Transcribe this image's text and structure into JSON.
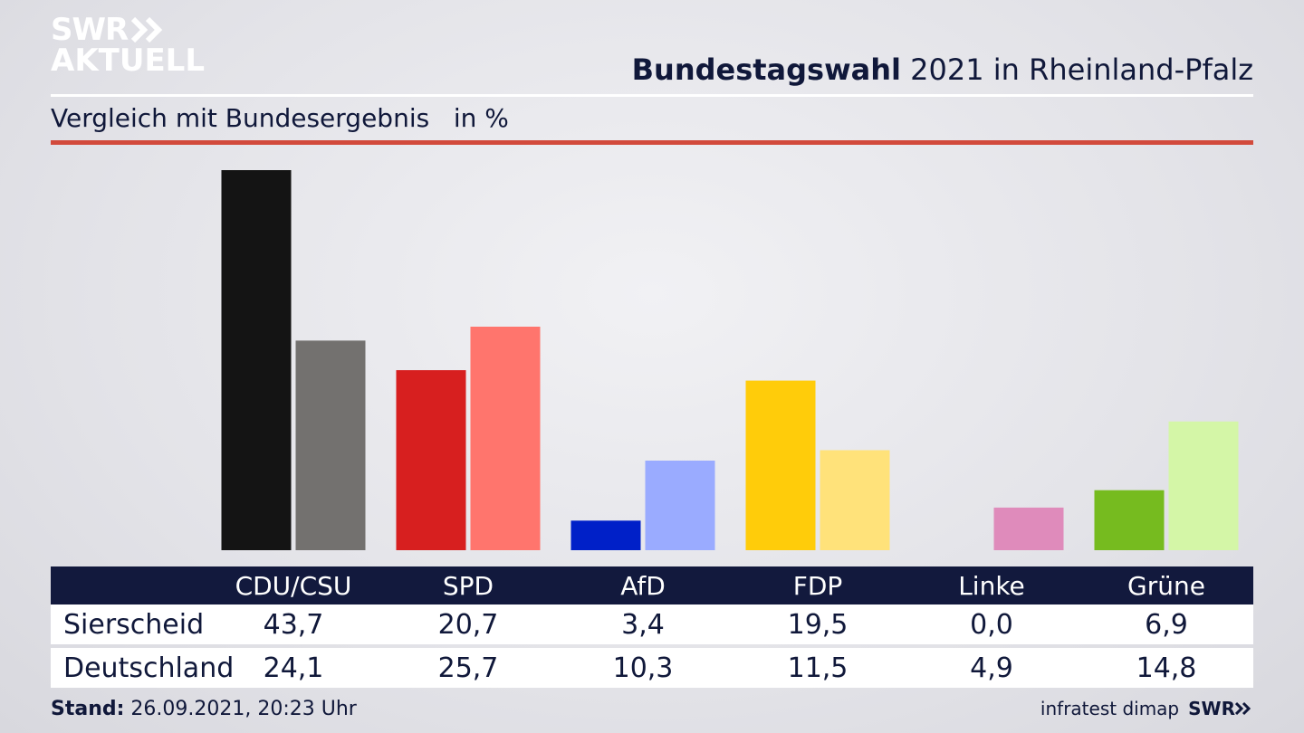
{
  "brand": {
    "logo_line1": "SWR",
    "logo_line2": "AKTUELL",
    "footer_logo": "SWR"
  },
  "header": {
    "title_bold": "Bundestagswahl",
    "title_rest": " 2021 in Rheinland-Pfalz",
    "subtitle": "Vergleich mit Bundesergebnis   in %"
  },
  "chart_data": {
    "type": "bar",
    "title": "Bundestagswahl 2021 in Rheinland-Pfalz",
    "subtitle": "Vergleich mit Bundesergebnis in %",
    "categories": [
      "CDU/CSU",
      "SPD",
      "AfD",
      "FDP",
      "Linke",
      "Grüne"
    ],
    "series": [
      {
        "name": "Sierscheid",
        "values": [
          43.7,
          20.7,
          3.4,
          19.5,
          0.0,
          6.9
        ],
        "labels": [
          "43,7",
          "20,7",
          "3,4",
          "19,5",
          "0,0",
          "6,9"
        ],
        "colors": [
          "#141414",
          "#d71f1f",
          "#0020c8",
          "#ffcc0a",
          "#cc5aa0",
          "#76bb1f"
        ]
      },
      {
        "name": "Deutschland",
        "values": [
          24.1,
          25.7,
          10.3,
          11.5,
          4.9,
          14.8
        ],
        "labels": [
          "24,1",
          "25,7",
          "10,3",
          "11,5",
          "4,9",
          "14,8"
        ],
        "colors": [
          "#73716f",
          "#ff756d",
          "#9aabff",
          "#ffe27a",
          "#df8bbb",
          "#d4f6a7"
        ]
      }
    ],
    "ylim": [
      0,
      43.7
    ],
    "grid": false
  },
  "footer": {
    "stand_label": "Stand:",
    "stand_value": " 26.09.2021, 20:23 Uhr",
    "source": "infratest dimap"
  }
}
